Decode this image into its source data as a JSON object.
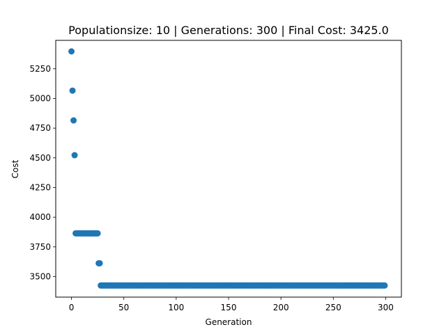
{
  "chart_data": {
    "type": "scatter",
    "title": "Populationsize: 10 | Generations: 300 | Final Cost: 3425.0",
    "xlabel": "Generation",
    "ylabel": "Cost",
    "xlim": [
      -15,
      315
    ],
    "ylim": [
      3327,
      5489
    ],
    "xticks": [
      0,
      50,
      100,
      150,
      200,
      250,
      300
    ],
    "xtick_labels": [
      "0",
      "50",
      "100",
      "150",
      "200",
      "250",
      "300"
    ],
    "yticks": [
      3500,
      3750,
      4000,
      4250,
      4500,
      4750,
      5000,
      5250
    ],
    "ytick_labels": [
      "3500",
      "3750",
      "4000",
      "4250",
      "4500",
      "4750",
      "5000",
      "5250"
    ],
    "grid": false,
    "marker_color": "#1f77b4",
    "points": [
      {
        "x": 0,
        "y": 5396
      },
      {
        "x": 1,
        "y": 5066
      },
      {
        "x": 2,
        "y": 4815
      },
      {
        "x": 3,
        "y": 4522
      },
      {
        "x": 4,
        "y": 3864
      },
      {
        "x": 5,
        "y": 3864
      },
      {
        "x": 6,
        "y": 3864
      },
      {
        "x": 7,
        "y": 3864
      },
      {
        "x": 8,
        "y": 3864
      },
      {
        "x": 9,
        "y": 3864
      },
      {
        "x": 10,
        "y": 3864
      },
      {
        "x": 11,
        "y": 3864
      },
      {
        "x": 12,
        "y": 3864
      },
      {
        "x": 13,
        "y": 3864
      },
      {
        "x": 14,
        "y": 3864
      },
      {
        "x": 15,
        "y": 3864
      },
      {
        "x": 16,
        "y": 3864
      },
      {
        "x": 17,
        "y": 3864
      },
      {
        "x": 18,
        "y": 3864
      },
      {
        "x": 19,
        "y": 3864
      },
      {
        "x": 20,
        "y": 3864
      },
      {
        "x": 21,
        "y": 3864
      },
      {
        "x": 22,
        "y": 3864
      },
      {
        "x": 23,
        "y": 3864
      },
      {
        "x": 24,
        "y": 3864
      },
      {
        "x": 25,
        "y": 3864
      },
      {
        "x": 26,
        "y": 3612
      },
      {
        "x": 27,
        "y": 3612
      },
      {
        "x_from": 28,
        "x_to": 299,
        "y": 3425
      }
    ]
  }
}
